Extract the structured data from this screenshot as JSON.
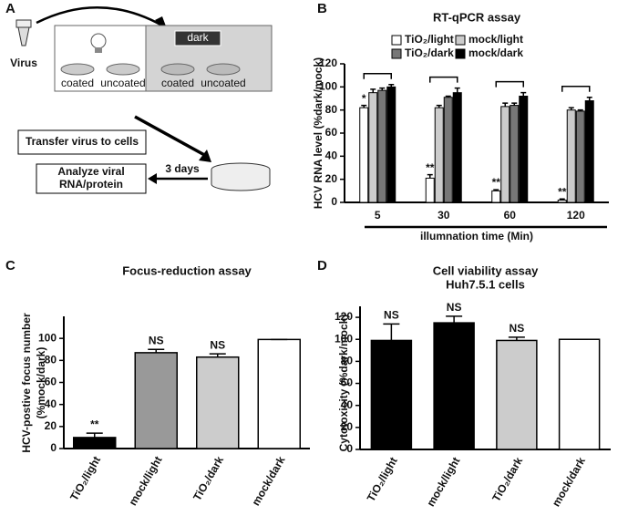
{
  "panel_labels": [
    "A",
    "B",
    "C",
    "D"
  ],
  "panel_a": {
    "virus": "Virus",
    "dark": "dark",
    "dish_labels": [
      "coated",
      "uncoated",
      "coated",
      "uncoated"
    ],
    "transfer": "Transfer virus to cells",
    "days": "3 days",
    "analyze": [
      "Analyze viral",
      "RNA/protein"
    ]
  },
  "chart_data": [
    {
      "type": "bar",
      "title": "RT-qPCR assay",
      "ylabel": [
        "HCV RNA level (%dark/mock)"
      ],
      "xlabel": "illumnation time (Min)",
      "categories": [
        "5",
        "30",
        "60",
        "120"
      ],
      "series": [
        {
          "name": "TiO₂/light",
          "color": "#ffffff",
          "values": [
            82,
            21,
            10,
            2
          ],
          "errors": [
            2,
            3,
            1,
            1
          ]
        },
        {
          "name": "mock/light",
          "color": "#cccccc",
          "values": [
            95,
            82,
            83,
            80
          ],
          "errors": [
            3,
            2,
            3,
            2
          ]
        },
        {
          "name": "TiO₂/dark",
          "color": "#777777",
          "values": [
            97,
            91,
            84,
            79
          ],
          "errors": [
            2,
            1,
            2,
            1
          ]
        },
        {
          "name": "mock/dark",
          "color": "#000000",
          "values": [
            100,
            95,
            92,
            88
          ],
          "errors": [
            2,
            4,
            3,
            3
          ]
        }
      ],
      "annotations": [
        {
          "series": 0,
          "index": 0,
          "text": "*"
        },
        {
          "series": 0,
          "index": 1,
          "text": "**"
        },
        {
          "series": 0,
          "index": 2,
          "text": "**"
        },
        {
          "series": 0,
          "index": 3,
          "text": "**"
        }
      ],
      "ylim": [
        0,
        120
      ],
      "yticks": [
        0,
        20,
        40,
        60,
        80,
        100,
        120
      ]
    },
    {
      "type": "bar",
      "title": "Focus-reduction assay",
      "ylabel": [
        "HCV-postive focus number",
        "(%mock/dark)"
      ],
      "categories": [
        "TiO₂/light",
        "mock/light",
        "TiO₂/dark",
        "mock/dark"
      ],
      "values": [
        10,
        87,
        83,
        99
      ],
      "errors": [
        4,
        3,
        3,
        0
      ],
      "colors": [
        "#000000",
        "#999999",
        "#cccccc",
        "#ffffff"
      ],
      "annotations": [
        {
          "index": 0,
          "text": "**"
        },
        {
          "index": 1,
          "text": "NS"
        },
        {
          "index": 2,
          "text": "NS"
        }
      ],
      "ylim": [
        0,
        120
      ],
      "yticks": [
        0,
        20,
        40,
        60,
        80,
        100
      ]
    },
    {
      "type": "bar",
      "title": "Cell viability assay",
      "subtitle": "Huh7.5.1 cells",
      "ylabel": [
        "Cytotoxicity (%dark/mock)"
      ],
      "categories": [
        "TiO₂/light",
        "mock/light",
        "TiO₂/dark",
        "mock/dark"
      ],
      "values": [
        99,
        115,
        99,
        100
      ],
      "errors": [
        15,
        6,
        3,
        0
      ],
      "colors": [
        "#000000",
        "#000000",
        "#cccccc",
        "#ffffff"
      ],
      "annotations": [
        {
          "index": 0,
          "text": "NS"
        },
        {
          "index": 1,
          "text": "NS"
        },
        {
          "index": 2,
          "text": "NS"
        }
      ],
      "ylim": [
        0,
        130
      ],
      "yticks": [
        0,
        20,
        40,
        60,
        80,
        100,
        120
      ]
    }
  ]
}
